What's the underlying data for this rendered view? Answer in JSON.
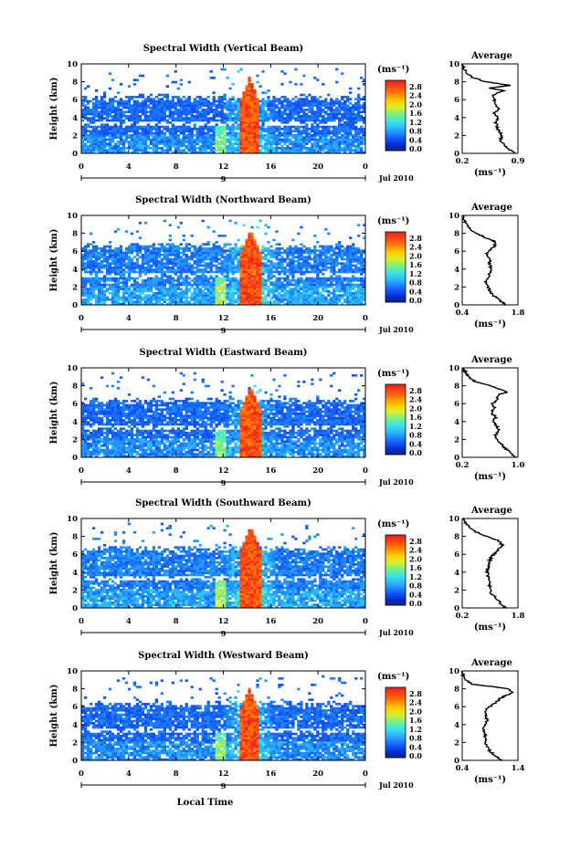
{
  "chart_data": [
    {
      "type": "heatmap",
      "title": "Spectral Width (Vertical Beam)",
      "ylabel": "Height (km)",
      "xlabel": "",
      "xlim": [
        0,
        24
      ],
      "ylim": [
        0,
        10
      ],
      "xticks": [
        "0",
        "4",
        "8",
        "12",
        "16",
        "20",
        "0"
      ],
      "yticks": [
        "0",
        "2",
        "4",
        "6",
        "8",
        "10"
      ],
      "date_day": "9",
      "date_label": "Jul 2010",
      "colorbar_unit": "(ms⁻¹)",
      "colorbar_ticks": [
        "2.8",
        "2.4",
        "2.0",
        "1.6",
        "1.2",
        "0.8",
        "0.4",
        "0.0"
      ],
      "colorbar_range": [
        0,
        3.0
      ],
      "field": {
        "max_height_km": 6.3,
        "peak_time_h": 14.2,
        "peak_top_km": 8.5,
        "peak_value": 3.0,
        "background_value": 0.6
      },
      "profile": {
        "title": "Average",
        "xlabel": "(ms⁻¹)",
        "xticks": [
          "0.2",
          "0.9"
        ],
        "xlim": [
          0.2,
          0.9
        ],
        "ylim": [
          0,
          10
        ],
        "yticks": [
          "0",
          "2",
          "4",
          "6",
          "8",
          "10"
        ],
        "height_km": [
          0.0,
          0.5,
          1.0,
          1.5,
          2.0,
          2.5,
          3.0,
          3.5,
          4.0,
          4.5,
          5.0,
          5.5,
          6.0,
          6.5,
          7.0,
          7.3,
          7.6,
          8.0,
          8.5,
          9.0,
          9.5,
          10.0
        ],
        "values": [
          0.86,
          0.78,
          0.72,
          0.68,
          0.7,
          0.66,
          0.64,
          0.62,
          0.65,
          0.6,
          0.66,
          0.62,
          0.6,
          0.58,
          0.72,
          0.55,
          0.8,
          0.5,
          0.32,
          0.26,
          0.22,
          0.2
        ]
      }
    },
    {
      "type": "heatmap",
      "title": "Spectral Width (Northward Beam)",
      "ylabel": "Height (km)",
      "xlabel": "",
      "xlim": [
        0,
        24
      ],
      "ylim": [
        0,
        10
      ],
      "xticks": [
        "0",
        "4",
        "8",
        "12",
        "16",
        "20",
        "0"
      ],
      "yticks": [
        "0",
        "2",
        "4",
        "6",
        "8",
        "10"
      ],
      "date_day": "9",
      "date_label": "Jul 2010",
      "colorbar_unit": "(ms⁻¹)",
      "colorbar_ticks": [
        "2.8",
        "2.4",
        "2.0",
        "1.6",
        "1.2",
        "0.8",
        "0.4",
        "0.0"
      ],
      "colorbar_range": [
        0,
        3.0
      ],
      "field": {
        "max_height_km": 6.6,
        "peak_time_h": 14.3,
        "peak_top_km": 8.5,
        "peak_value": 3.0,
        "background_value": 0.7
      },
      "profile": {
        "title": "Average",
        "xlabel": "(ms⁻¹)",
        "xticks": [
          "0.4",
          "1.8"
        ],
        "xlim": [
          0.4,
          1.8
        ],
        "ylim": [
          0,
          10
        ],
        "yticks": [
          "0",
          "2",
          "4",
          "6",
          "8",
          "10"
        ],
        "height_km": [
          0.0,
          0.5,
          1.0,
          1.5,
          2.0,
          2.5,
          3.0,
          3.5,
          4.0,
          4.5,
          5.0,
          5.5,
          6.0,
          6.5,
          7.0,
          7.3,
          7.6,
          8.0,
          8.5,
          9.0,
          9.5,
          10.0
        ],
        "values": [
          1.5,
          1.35,
          1.2,
          1.1,
          1.05,
          1.0,
          1.02,
          1.1,
          1.15,
          1.08,
          1.12,
          1.0,
          1.05,
          1.2,
          1.25,
          1.1,
          0.95,
          0.75,
          0.6,
          0.5,
          0.45,
          0.42
        ]
      }
    },
    {
      "type": "heatmap",
      "title": "Spectral Width (Eastward Beam)",
      "ylabel": "Height (km)",
      "xlabel": "",
      "xlim": [
        0,
        24
      ],
      "ylim": [
        0,
        10
      ],
      "xticks": [
        "0",
        "4",
        "8",
        "12",
        "16",
        "20",
        "0"
      ],
      "yticks": [
        "0",
        "2",
        "4",
        "6",
        "8",
        "10"
      ],
      "date_day": "9",
      "date_label": "Jul 2010",
      "colorbar_unit": "(ms⁻¹)",
      "colorbar_ticks": [
        "2.8",
        "2.4",
        "2.0",
        "1.6",
        "1.2",
        "0.8",
        "0.4",
        "0.0"
      ],
      "colorbar_range": [
        0,
        3.0
      ],
      "field": {
        "max_height_km": 6.4,
        "peak_time_h": 14.3,
        "peak_top_km": 8.0,
        "peak_value": 3.0,
        "background_value": 0.6
      },
      "profile": {
        "title": "Average",
        "xlabel": "(ms⁻¹)",
        "xticks": [
          "0.2",
          "1.0"
        ],
        "xlim": [
          0.2,
          1.0
        ],
        "ylim": [
          0,
          10
        ],
        "yticks": [
          "0",
          "2",
          "4",
          "6",
          "8",
          "10"
        ],
        "height_km": [
          0.0,
          0.5,
          1.0,
          1.5,
          2.0,
          2.5,
          3.0,
          3.5,
          4.0,
          4.5,
          5.0,
          5.5,
          6.0,
          6.5,
          7.0,
          7.3,
          7.6,
          8.0,
          8.5,
          9.0,
          9.5,
          10.0
        ],
        "values": [
          0.95,
          0.9,
          0.82,
          0.76,
          0.7,
          0.68,
          0.72,
          0.7,
          0.65,
          0.68,
          0.62,
          0.66,
          0.64,
          0.7,
          0.72,
          0.85,
          0.75,
          0.6,
          0.38,
          0.3,
          0.24,
          0.22
        ]
      }
    },
    {
      "type": "heatmap",
      "title": "Spectral Width (Southward Beam)",
      "ylabel": "Height (km)",
      "xlabel": "",
      "xlim": [
        0,
        24
      ],
      "ylim": [
        0,
        10
      ],
      "xticks": [
        "0",
        "4",
        "8",
        "12",
        "16",
        "20",
        "0"
      ],
      "yticks": [
        "0",
        "2",
        "4",
        "6",
        "8",
        "10"
      ],
      "date_day": "9",
      "date_label": "Jul 2010",
      "colorbar_unit": "(ms⁻¹)",
      "colorbar_ticks": [
        "2.8",
        "2.4",
        "2.0",
        "1.6",
        "1.2",
        "0.8",
        "0.4",
        "0.0"
      ],
      "colorbar_range": [
        0,
        3.0
      ],
      "field": {
        "max_height_km": 6.6,
        "peak_time_h": 14.3,
        "peak_top_km": 9.2,
        "peak_value": 3.0,
        "background_value": 0.7
      },
      "profile": {
        "title": "Average",
        "xlabel": "(ms⁻¹)",
        "xticks": [
          "0.2",
          "1.8"
        ],
        "xlim": [
          0.2,
          1.8
        ],
        "ylim": [
          0,
          10
        ],
        "yticks": [
          "0",
          "2",
          "4",
          "6",
          "8",
          "10"
        ],
        "height_km": [
          0.0,
          0.5,
          1.0,
          1.5,
          2.0,
          2.5,
          3.0,
          3.5,
          4.0,
          4.5,
          5.0,
          5.5,
          6.0,
          6.5,
          7.0,
          7.3,
          7.6,
          8.0,
          8.5,
          9.0,
          9.5,
          10.0
        ],
        "values": [
          1.45,
          1.3,
          1.2,
          1.05,
          1.0,
          0.98,
          1.0,
          0.95,
          0.92,
          0.95,
          0.98,
          1.0,
          1.1,
          1.25,
          1.35,
          1.3,
          1.2,
          0.9,
          0.6,
          0.4,
          0.3,
          0.25
        ]
      }
    },
    {
      "type": "heatmap",
      "title": "Spectral Width (Westward Beam)",
      "ylabel": "Height (km)",
      "xlabel": "Local Time",
      "xlim": [
        0,
        24
      ],
      "ylim": [
        0,
        10
      ],
      "xticks": [
        "0",
        "4",
        "8",
        "12",
        "16",
        "20",
        "0"
      ],
      "yticks": [
        "0",
        "2",
        "4",
        "6",
        "8",
        "10"
      ],
      "date_day": "9",
      "date_label": "Jul 2010",
      "colorbar_unit": "(ms⁻¹)",
      "colorbar_ticks": [
        "2.8",
        "2.4",
        "2.0",
        "1.6",
        "1.2",
        "0.8",
        "0.4",
        "0.0"
      ],
      "colorbar_range": [
        0,
        3.0
      ],
      "field": {
        "max_height_km": 6.3,
        "peak_time_h": 14.2,
        "peak_top_km": 8.2,
        "peak_value": 3.0,
        "background_value": 0.6
      },
      "profile": {
        "title": "Average",
        "xlabel": "(ms⁻¹)",
        "xticks": [
          "0.4",
          "1.4"
        ],
        "xlim": [
          0.4,
          1.4
        ],
        "ylim": [
          0,
          10
        ],
        "yticks": [
          "0",
          "2",
          "4",
          "6",
          "8",
          "10"
        ],
        "height_km": [
          0.0,
          0.5,
          1.0,
          1.5,
          2.0,
          2.5,
          3.0,
          3.5,
          4.0,
          4.5,
          5.0,
          5.5,
          6.0,
          6.5,
          7.0,
          7.3,
          7.6,
          8.0,
          8.5,
          9.0,
          9.5,
          10.0
        ],
        "values": [
          1.1,
          1.0,
          0.9,
          0.85,
          0.8,
          0.82,
          0.8,
          0.78,
          0.82,
          0.85,
          0.82,
          0.8,
          0.9,
          1.0,
          1.1,
          1.2,
          1.3,
          1.25,
          0.6,
          0.45,
          0.42,
          0.4
        ]
      }
    }
  ]
}
